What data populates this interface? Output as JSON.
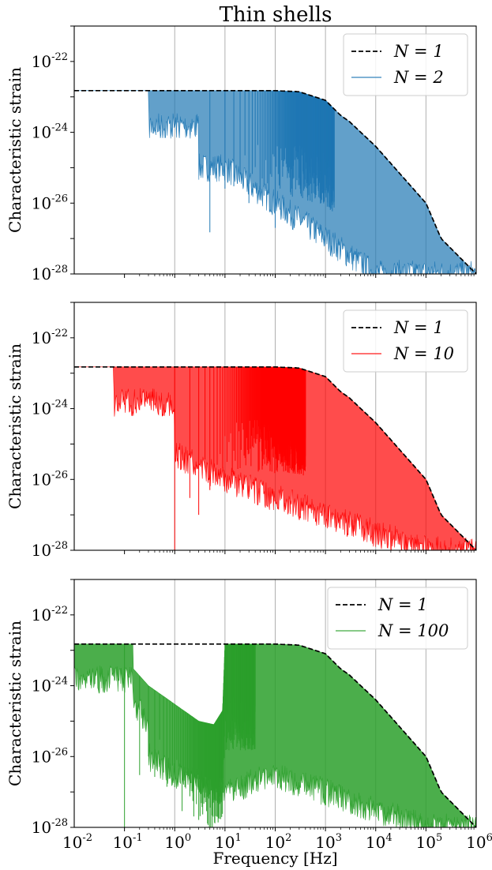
{
  "figure_title": "Thin shells",
  "chart_data": [
    {
      "type": "line",
      "title": "Thin shells",
      "xlabel": "",
      "ylabel": "Characteristic strain",
      "xscale": "log",
      "yscale": "log",
      "xlim": [
        0.01,
        1000000
      ],
      "ylim": [
        1e-28,
        1e-21
      ],
      "x_ticks": [
        "-2",
        "-1",
        "0",
        "1",
        "2",
        "3",
        "4",
        "5",
        "6"
      ],
      "x_tick_labels_visible": false,
      "y_ticks": [
        "-22",
        "-24",
        "-26",
        "-28"
      ],
      "grid": "vertical major",
      "legend_position": "top-right",
      "series": [
        {
          "name": "N = 1",
          "style": "dashed",
          "color": "#000000",
          "x": [
            0.01,
            0.1,
            1,
            10,
            100,
            300,
            1000,
            2000,
            3000,
            10000,
            100000,
            200000,
            1000000
          ],
          "y": [
            1.5e-23,
            1.5e-23,
            1.5e-23,
            1.5e-23,
            1.5e-23,
            1.4e-23,
            8e-24,
            3e-24,
            2e-24,
            4e-25,
            1e-26,
            1e-27,
            1e-28
          ]
        },
        {
          "name": "N = 2",
          "style": "solid",
          "color": "#1f77b4",
          "fill_alpha": 0.7,
          "first_dip_hz": 0.3,
          "dip_spacing_hz": 5,
          "dips": [
            [
              5,
              1.5e-27
            ],
            [
              15,
              3e-26
            ],
            [
              30,
              1e-26
            ],
            [
              100,
              2e-27
            ]
          ],
          "lower_envelope": {
            "x": [
              3,
              10,
              100,
              1000,
              10000,
              100000,
              1000000
            ],
            "y": [
              1e-25,
              1e-25,
              1e-26,
              1e-27,
              1e-28,
              1e-28,
              1e-28
            ]
          }
        }
      ]
    },
    {
      "type": "line",
      "title": "",
      "xlabel": "",
      "ylabel": "Characteristic strain",
      "xscale": "log",
      "yscale": "log",
      "xlim": [
        0.01,
        1000000
      ],
      "ylim": [
        1e-28,
        1e-21
      ],
      "x_ticks": [
        "-2",
        "-1",
        "0",
        "1",
        "2",
        "3",
        "4",
        "5",
        "6"
      ],
      "x_tick_labels_visible": false,
      "y_ticks": [
        "-22",
        "-24",
        "-26",
        "-28"
      ],
      "grid": "vertical major",
      "legend_position": "top-right",
      "series": [
        {
          "name": "N = 1",
          "style": "dashed",
          "color": "#000000",
          "x": [
            0.01,
            0.1,
            1,
            10,
            100,
            300,
            1000,
            2000,
            3000,
            10000,
            100000,
            200000,
            1000000
          ],
          "y": [
            1.5e-23,
            1.5e-23,
            1.5e-23,
            1.5e-23,
            1.5e-23,
            1.4e-23,
            8e-24,
            3e-24,
            2e-24,
            4e-25,
            1e-26,
            1e-27,
            1e-28
          ]
        },
        {
          "name": "N = 10",
          "style": "solid",
          "color": "#ff0000",
          "fill_alpha": 0.7,
          "first_dip_hz": 0.06,
          "dip_spacing_hz": 1,
          "dips": [
            [
              1,
              1e-28
            ],
            [
              2,
              3e-27
            ],
            [
              3,
              1e-27
            ],
            [
              5,
              5e-27
            ]
          ],
          "lower_envelope": {
            "x": [
              1,
              10,
              100,
              1000,
              10000,
              100000,
              1000000
            ],
            "y": [
              5e-26,
              1e-26,
              3e-27,
              1e-27,
              3e-28,
              1e-28,
              1e-28
            ]
          }
        }
      ]
    },
    {
      "type": "line",
      "title": "",
      "xlabel": "Frequency [Hz]",
      "ylabel": "Characteristic strain",
      "xscale": "log",
      "yscale": "log",
      "xlim": [
        0.01,
        1000000
      ],
      "ylim": [
        1e-28,
        1e-21
      ],
      "x_ticks": [
        "-2",
        "-1",
        "0",
        "1",
        "2",
        "3",
        "4",
        "5",
        "6"
      ],
      "x_tick_labels_visible": true,
      "y_ticks": [
        "-22",
        "-24",
        "-26",
        "-28"
      ],
      "grid": "vertical major",
      "legend_position": "top-right",
      "series": [
        {
          "name": "N = 1",
          "style": "dashed",
          "color": "#000000",
          "x": [
            0.01,
            0.1,
            1,
            10,
            100,
            300,
            1000,
            2000,
            3000,
            10000,
            100000,
            200000,
            1000000
          ],
          "y": [
            1.5e-23,
            1.5e-23,
            1.5e-23,
            1.5e-23,
            1.5e-23,
            1.4e-23,
            8e-24,
            3e-24,
            2e-24,
            4e-25,
            1e-26,
            1e-27,
            1e-28
          ]
        },
        {
          "name": "N = 100",
          "style": "solid",
          "color": "#2ca02c",
          "fill_alpha": 0.85,
          "first_dip_hz": 0.006,
          "dip_spacing_hz": 0.1,
          "dips": [
            [
              0.1,
              1e-28
            ],
            [
              0.2,
              3e-27
            ],
            [
              0.3,
              1e-26
            ],
            [
              0.5,
              3e-26
            ]
          ],
          "upper_envelope": {
            "x": [
              0.15,
              0.3,
              1,
              3,
              6,
              9,
              10
            ],
            "y": [
              3e-24,
              1e-24,
              3e-25,
              1e-25,
              8e-26,
              2e-25,
              1.5e-23
            ]
          },
          "lower_envelope": {
            "x": [
              0.3,
              1,
              10,
              100,
              1000,
              10000,
              100000,
              1000000
            ],
            "y": [
              1e-26,
              3e-27,
              1e-27,
              3e-27,
              1e-27,
              3e-28,
              1e-28,
              1e-28
            ]
          }
        }
      ]
    }
  ]
}
